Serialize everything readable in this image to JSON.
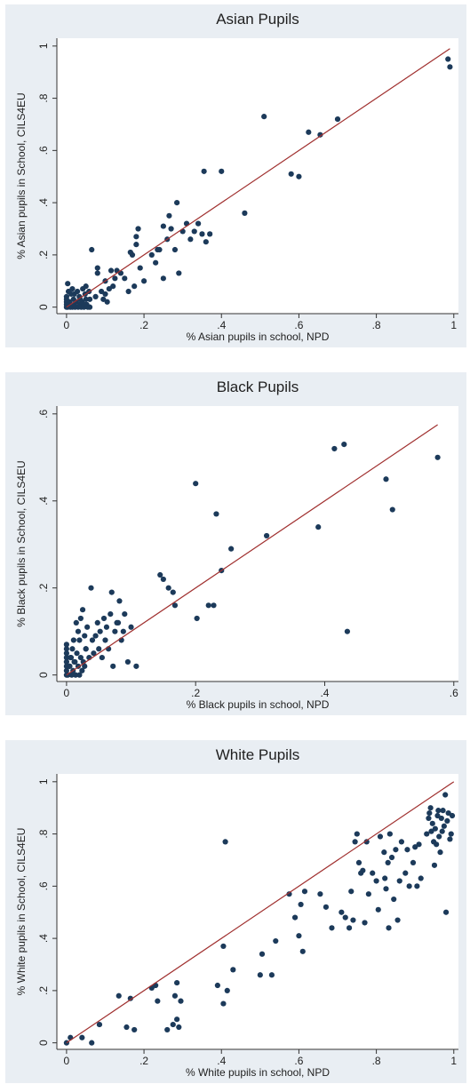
{
  "chart_data": [
    {
      "type": "scatter",
      "title": "Asian Pupils",
      "xlabel": "% Asian pupils in school, NPD",
      "ylabel": "% Asian pupils in School, CILS4EU",
      "xlim": [
        0,
        1
      ],
      "ylim": [
        0,
        1
      ],
      "xticks": [
        0,
        0.2,
        0.4,
        0.6,
        0.8,
        1
      ],
      "xtick_labels": [
        "0",
        ".2",
        ".4",
        ".6",
        ".8",
        "1"
      ],
      "yticks": [
        0,
        0.2,
        0.4,
        0.6,
        0.8,
        1
      ],
      "ytick_labels": [
        "0",
        ".2",
        ".4",
        ".6",
        ".8",
        "1"
      ],
      "grid": false,
      "fit_line": {
        "x": [
          0,
          0.99
        ],
        "y": [
          0,
          0.99
        ]
      },
      "points": [
        [
          0.0,
          0.0
        ],
        [
          0.0,
          0.01
        ],
        [
          0.0,
          0.02
        ],
        [
          0.0,
          0.03
        ],
        [
          0.0,
          0.04
        ],
        [
          0.003,
          0.0
        ],
        [
          0.005,
          0.01
        ],
        [
          0.008,
          0.02
        ],
        [
          0.01,
          0.0
        ],
        [
          0.012,
          0.05
        ],
        [
          0.015,
          0.0
        ],
        [
          0.018,
          0.03
        ],
        [
          0.02,
          0.01
        ],
        [
          0.022,
          0.0
        ],
        [
          0.025,
          0.02
        ],
        [
          0.028,
          0.06
        ],
        [
          0.03,
          0.0
        ],
        [
          0.033,
          0.04
        ],
        [
          0.035,
          0.01
        ],
        [
          0.038,
          0.0
        ],
        [
          0.04,
          0.02
        ],
        [
          0.042,
          0.07
        ],
        [
          0.045,
          0.0
        ],
        [
          0.048,
          0.05
        ],
        [
          0.05,
          0.03
        ],
        [
          0.052,
          0.01
        ],
        [
          0.055,
          0.0
        ],
        [
          0.058,
          0.06
        ],
        [
          0.06,
          0.03
        ],
        [
          0.003,
          0.09
        ],
        [
          0.005,
          0.06
        ],
        [
          0.015,
          0.07
        ],
        [
          0.02,
          0.05
        ],
        [
          0.035,
          0.03
        ],
        [
          0.045,
          0.01
        ],
        [
          0.05,
          0.08
        ],
        [
          0.06,
          0.0
        ],
        [
          0.065,
          0.22
        ],
        [
          0.075,
          0.04
        ],
        [
          0.08,
          0.15
        ],
        [
          0.08,
          0.13
        ],
        [
          0.09,
          0.06
        ],
        [
          0.095,
          0.03
        ],
        [
          0.1,
          0.05
        ],
        [
          0.1,
          0.1
        ],
        [
          0.105,
          0.02
        ],
        [
          0.11,
          0.07
        ],
        [
          0.115,
          0.14
        ],
        [
          0.12,
          0.08
        ],
        [
          0.125,
          0.11
        ],
        [
          0.13,
          0.14
        ],
        [
          0.14,
          0.13
        ],
        [
          0.15,
          0.11
        ],
        [
          0.16,
          0.06
        ],
        [
          0.165,
          0.21
        ],
        [
          0.17,
          0.2
        ],
        [
          0.175,
          0.08
        ],
        [
          0.18,
          0.24
        ],
        [
          0.18,
          0.27
        ],
        [
          0.185,
          0.3
        ],
        [
          0.19,
          0.15
        ],
        [
          0.2,
          0.1
        ],
        [
          0.22,
          0.2
        ],
        [
          0.23,
          0.17
        ],
        [
          0.235,
          0.22
        ],
        [
          0.24,
          0.22
        ],
        [
          0.25,
          0.31
        ],
        [
          0.25,
          0.11
        ],
        [
          0.26,
          0.26
        ],
        [
          0.265,
          0.35
        ],
        [
          0.27,
          0.3
        ],
        [
          0.28,
          0.22
        ],
        [
          0.285,
          0.4
        ],
        [
          0.29,
          0.13
        ],
        [
          0.3,
          0.29
        ],
        [
          0.31,
          0.32
        ],
        [
          0.32,
          0.26
        ],
        [
          0.33,
          0.29
        ],
        [
          0.34,
          0.32
        ],
        [
          0.35,
          0.28
        ],
        [
          0.355,
          0.52
        ],
        [
          0.36,
          0.25
        ],
        [
          0.37,
          0.28
        ],
        [
          0.4,
          0.52
        ],
        [
          0.46,
          0.36
        ],
        [
          0.51,
          0.73
        ],
        [
          0.58,
          0.51
        ],
        [
          0.6,
          0.5
        ],
        [
          0.625,
          0.67
        ],
        [
          0.655,
          0.66
        ],
        [
          0.7,
          0.72
        ],
        [
          0.985,
          0.95
        ],
        [
          0.99,
          0.92
        ]
      ]
    },
    {
      "type": "scatter",
      "title": "Black Pupils",
      "xlabel": "% Black pupils in school, NPD",
      "ylabel": "% Black pupils in School, CILS4EU",
      "xlim": [
        0,
        0.6
      ],
      "ylim": [
        0,
        0.6
      ],
      "xticks": [
        0,
        0.2,
        0.4,
        0.6
      ],
      "xtick_labels": [
        "0",
        ".2",
        ".4",
        ".6"
      ],
      "yticks": [
        0,
        0.2,
        0.4,
        0.6
      ],
      "ytick_labels": [
        "0",
        ".2",
        ".4",
        ".6"
      ],
      "grid": false,
      "fit_line": {
        "x": [
          0,
          0.575
        ],
        "y": [
          0,
          0.575
        ]
      },
      "points": [
        [
          0.0,
          0.0
        ],
        [
          0.0,
          0.01
        ],
        [
          0.0,
          0.02
        ],
        [
          0.0,
          0.03
        ],
        [
          0.0,
          0.04
        ],
        [
          0.0,
          0.05
        ],
        [
          0.0,
          0.06
        ],
        [
          0.0,
          0.07
        ],
        [
          0.002,
          0.0
        ],
        [
          0.004,
          0.02
        ],
        [
          0.006,
          0.04
        ],
        [
          0.008,
          0.0
        ],
        [
          0.01,
          0.01
        ],
        [
          0.012,
          0.03
        ],
        [
          0.014,
          0.0
        ],
        [
          0.016,
          0.05
        ],
        [
          0.018,
          0.02
        ],
        [
          0.02,
          0.0
        ],
        [
          0.022,
          0.04
        ],
        [
          0.024,
          0.01
        ],
        [
          0.026,
          0.03
        ],
        [
          0.028,
          0.02
        ],
        [
          0.03,
          0.06
        ],
        [
          0.005,
          0.02
        ],
        [
          0.007,
          0.04
        ],
        [
          0.009,
          0.06
        ],
        [
          0.011,
          0.08
        ],
        [
          0.013,
          0.03
        ],
        [
          0.015,
          0.12
        ],
        [
          0.018,
          0.1
        ],
        [
          0.02,
          0.08
        ],
        [
          0.022,
          0.13
        ],
        [
          0.025,
          0.15
        ],
        [
          0.028,
          0.09
        ],
        [
          0.03,
          0.06
        ],
        [
          0.032,
          0.11
        ],
        [
          0.035,
          0.04
        ],
        [
          0.038,
          0.2
        ],
        [
          0.04,
          0.08
        ],
        [
          0.042,
          0.05
        ],
        [
          0.045,
          0.09
        ],
        [
          0.048,
          0.12
        ],
        [
          0.05,
          0.06
        ],
        [
          0.052,
          0.1
        ],
        [
          0.055,
          0.04
        ],
        [
          0.058,
          0.13
        ],
        [
          0.06,
          0.08
        ],
        [
          0.062,
          0.11
        ],
        [
          0.065,
          0.06
        ],
        [
          0.068,
          0.14
        ],
        [
          0.07,
          0.19
        ],
        [
          0.072,
          0.02
        ],
        [
          0.075,
          0.1
        ],
        [
          0.078,
          0.12
        ],
        [
          0.08,
          0.12
        ],
        [
          0.082,
          0.17
        ],
        [
          0.085,
          0.08
        ],
        [
          0.088,
          0.1
        ],
        [
          0.09,
          0.14
        ],
        [
          0.095,
          0.03
        ],
        [
          0.1,
          0.11
        ],
        [
          0.108,
          0.02
        ],
        [
          0.145,
          0.23
        ],
        [
          0.15,
          0.22
        ],
        [
          0.158,
          0.2
        ],
        [
          0.165,
          0.19
        ],
        [
          0.168,
          0.16
        ],
        [
          0.2,
          0.44
        ],
        [
          0.202,
          0.13
        ],
        [
          0.22,
          0.16
        ],
        [
          0.228,
          0.16
        ],
        [
          0.232,
          0.37
        ],
        [
          0.24,
          0.24
        ],
        [
          0.255,
          0.29
        ],
        [
          0.31,
          0.32
        ],
        [
          0.39,
          0.34
        ],
        [
          0.415,
          0.52
        ],
        [
          0.43,
          0.53
        ],
        [
          0.435,
          0.1
        ],
        [
          0.495,
          0.45
        ],
        [
          0.505,
          0.38
        ],
        [
          0.575,
          0.5
        ]
      ]
    },
    {
      "type": "scatter",
      "title": "White Pupils",
      "xlabel": "% White pupils in school, NPD",
      "ylabel": "% White pupils in School, CILS4EU",
      "xlim": [
        0,
        1
      ],
      "ylim": [
        0,
        1
      ],
      "xticks": [
        0,
        0.2,
        0.4,
        0.6,
        0.8,
        1
      ],
      "xtick_labels": [
        "0",
        ".2",
        ".4",
        ".6",
        ".8",
        "1"
      ],
      "yticks": [
        0,
        0.2,
        0.4,
        0.6,
        0.8,
        1
      ],
      "ytick_labels": [
        "0",
        ".2",
        ".4",
        ".6",
        ".8",
        "1"
      ],
      "grid": false,
      "fit_line": {
        "x": [
          0,
          1
        ],
        "y": [
          0,
          1
        ]
      },
      "points": [
        [
          0.0,
          0.0
        ],
        [
          0.01,
          0.02
        ],
        [
          0.04,
          0.02
        ],
        [
          0.065,
          0.0
        ],
        [
          0.085,
          0.07
        ],
        [
          0.135,
          0.18
        ],
        [
          0.155,
          0.06
        ],
        [
          0.165,
          0.17
        ],
        [
          0.175,
          0.05
        ],
        [
          0.22,
          0.21
        ],
        [
          0.23,
          0.22
        ],
        [
          0.235,
          0.16
        ],
        [
          0.26,
          0.05
        ],
        [
          0.275,
          0.07
        ],
        [
          0.28,
          0.18
        ],
        [
          0.285,
          0.23
        ],
        [
          0.285,
          0.09
        ],
        [
          0.29,
          0.06
        ],
        [
          0.295,
          0.16
        ],
        [
          0.39,
          0.22
        ],
        [
          0.405,
          0.15
        ],
        [
          0.405,
          0.37
        ],
        [
          0.41,
          0.77
        ],
        [
          0.415,
          0.2
        ],
        [
          0.43,
          0.28
        ],
        [
          0.5,
          0.26
        ],
        [
          0.505,
          0.34
        ],
        [
          0.53,
          0.26
        ],
        [
          0.54,
          0.39
        ],
        [
          0.575,
          0.57
        ],
        [
          0.59,
          0.48
        ],
        [
          0.6,
          0.41
        ],
        [
          0.605,
          0.53
        ],
        [
          0.61,
          0.35
        ],
        [
          0.615,
          0.58
        ],
        [
          0.655,
          0.57
        ],
        [
          0.67,
          0.52
        ],
        [
          0.685,
          0.44
        ],
        [
          0.71,
          0.5
        ],
        [
          0.72,
          0.48
        ],
        [
          0.73,
          0.44
        ],
        [
          0.735,
          0.58
        ],
        [
          0.74,
          0.47
        ],
        [
          0.745,
          0.77
        ],
        [
          0.75,
          0.8
        ],
        [
          0.755,
          0.69
        ],
        [
          0.76,
          0.65
        ],
        [
          0.765,
          0.66
        ],
        [
          0.77,
          0.46
        ],
        [
          0.775,
          0.77
        ],
        [
          0.78,
          0.57
        ],
        [
          0.79,
          0.65
        ],
        [
          0.8,
          0.62
        ],
        [
          0.805,
          0.51
        ],
        [
          0.81,
          0.79
        ],
        [
          0.82,
          0.73
        ],
        [
          0.822,
          0.63
        ],
        [
          0.825,
          0.59
        ],
        [
          0.83,
          0.69
        ],
        [
          0.832,
          0.44
        ],
        [
          0.835,
          0.8
        ],
        [
          0.84,
          0.71
        ],
        [
          0.845,
          0.55
        ],
        [
          0.85,
          0.74
        ],
        [
          0.855,
          0.47
        ],
        [
          0.86,
          0.62
        ],
        [
          0.865,
          0.77
        ],
        [
          0.875,
          0.65
        ],
        [
          0.88,
          0.74
        ],
        [
          0.885,
          0.6
        ],
        [
          0.895,
          0.69
        ],
        [
          0.9,
          0.75
        ],
        [
          0.905,
          0.6
        ],
        [
          0.91,
          0.76
        ],
        [
          0.915,
          0.63
        ],
        [
          0.93,
          0.8
        ],
        [
          0.935,
          0.86
        ],
        [
          0.937,
          0.88
        ],
        [
          0.94,
          0.9
        ],
        [
          0.942,
          0.81
        ],
        [
          0.945,
          0.84
        ],
        [
          0.948,
          0.77
        ],
        [
          0.95,
          0.68
        ],
        [
          0.952,
          0.82
        ],
        [
          0.955,
          0.76
        ],
        [
          0.958,
          0.87
        ],
        [
          0.96,
          0.89
        ],
        [
          0.962,
          0.79
        ],
        [
          0.965,
          0.73
        ],
        [
          0.968,
          0.86
        ],
        [
          0.97,
          0.81
        ],
        [
          0.972,
          0.89
        ],
        [
          0.975,
          0.83
        ],
        [
          0.978,
          0.95
        ],
        [
          0.98,
          0.5
        ],
        [
          0.983,
          0.85
        ],
        [
          0.986,
          0.88
        ],
        [
          0.99,
          0.78
        ],
        [
          0.993,
          0.8
        ],
        [
          0.996,
          0.87
        ]
      ]
    }
  ],
  "colors": {
    "panel_background": "#e9eef3",
    "plot_background": "#ffffff",
    "point": "#1c3a5a",
    "fit_line": "#a0302f",
    "axis": "#333333"
  }
}
